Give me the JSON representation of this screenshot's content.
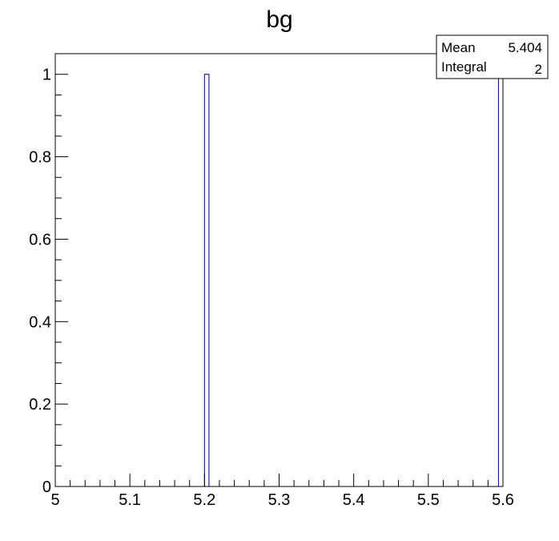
{
  "chart_data": {
    "type": "bar",
    "title": "bg",
    "xlabel": "",
    "ylabel": "",
    "xlim": [
      5,
      5.6
    ],
    "ylim": [
      0,
      1.05
    ],
    "bin_width": 0.006,
    "bins": [
      {
        "x": 5.2,
        "value": 1
      },
      {
        "x": 5.594,
        "value": 1
      }
    ],
    "x_tick_labels": [
      "5",
      "5.1",
      "5.2",
      "5.3",
      "5.4",
      "5.5",
      "5.6"
    ],
    "y_tick_labels": [
      "0",
      "0.2",
      "0.4",
      "0.6",
      "0.8",
      "1"
    ],
    "x_ticks": [
      5,
      5.1,
      5.2,
      5.3,
      5.4,
      5.5,
      5.6
    ],
    "y_ticks": [
      0,
      0.2,
      0.4,
      0.6,
      0.8,
      1
    ],
    "x_minor_step": 0.02,
    "y_minor_step": 0.05,
    "stats": {
      "mean_label": "Mean",
      "mean_value": "5.404",
      "integral_label": "Integral",
      "integral_value": "2"
    },
    "bar_color": "#000080",
    "grid": false
  }
}
